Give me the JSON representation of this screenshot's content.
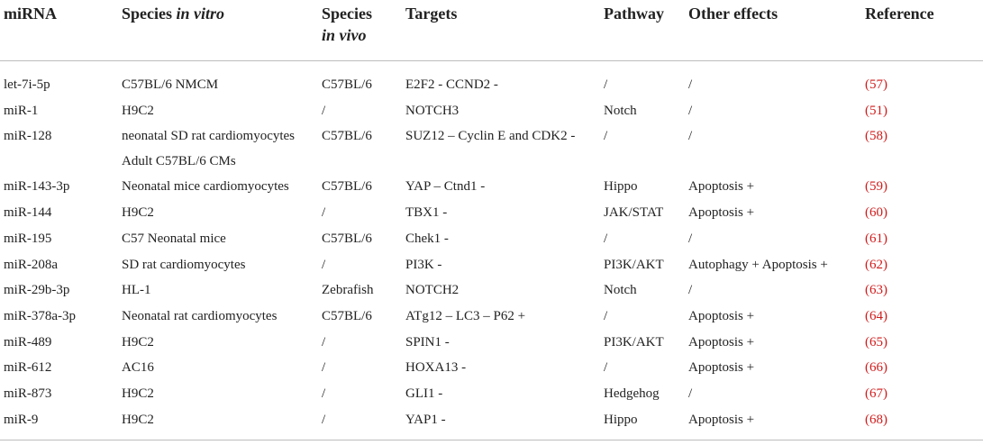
{
  "columns": {
    "mirna": "miRNA",
    "species_in_vitro": "Species",
    "species_in_vitro_em": "in vitro",
    "species_in_vivo": "Species",
    "species_in_vivo_em": "in vivo",
    "targets": "Targets",
    "pathway": "Pathway",
    "other_effects": "Other effects",
    "reference": "Reference"
  },
  "rows": [
    {
      "mirna": "let-7i-5p",
      "vitro": "C57BL/6 NMCM",
      "vivo": "C57BL/6",
      "targets": "E2F2 - CCND2 -",
      "pathway": "/",
      "effects": "/",
      "ref": "(57)"
    },
    {
      "mirna": "miR-1",
      "vitro": "H9C2",
      "vivo": "/",
      "targets": "NOTCH3",
      "pathway": "Notch",
      "effects": "/",
      "ref": "(51)"
    },
    {
      "mirna": "miR-128",
      "vitro": "neonatal SD rat cardiomyocytes",
      "vitro2": "Adult C57BL/6 CMs",
      "vivo": "C57BL/6",
      "targets": "SUZ12 – Cyclin E and CDK2 -",
      "pathway": "/",
      "effects": "/",
      "ref": "(58)"
    },
    {
      "mirna": "miR-143-3p",
      "vitro": "Neonatal mice cardiomyocytes",
      "vivo": "C57BL/6",
      "targets": "YAP – Ctnd1 -",
      "pathway": "Hippo",
      "effects": "Apoptosis +",
      "ref": "(59)"
    },
    {
      "mirna": "miR-144",
      "vitro": "H9C2",
      "vivo": "/",
      "targets": "TBX1 -",
      "pathway": "JAK/STAT",
      "effects": "Apoptosis +",
      "ref": "(60)"
    },
    {
      "mirna": "miR-195",
      "vitro": "C57 Neonatal mice",
      "vivo": "C57BL/6",
      "targets": "Chek1 -",
      "pathway": "/",
      "effects": "/",
      "ref": "(61)"
    },
    {
      "mirna": "miR-208a",
      "vitro": "SD rat cardiomyocytes",
      "vivo": "/",
      "targets": "PI3K -",
      "pathway": "PI3K/AKT",
      "effects": "Autophagy + Apoptosis +",
      "ref": "(62)"
    },
    {
      "mirna": "miR-29b-3p",
      "vitro": "HL-1",
      "vivo": "Zebrafish",
      "targets": "NOTCH2",
      "pathway": "Notch",
      "effects": "/",
      "ref": "(63)"
    },
    {
      "mirna": "miR-378a-3p",
      "vitro": "Neonatal rat cardiomyocytes",
      "vivo": "C57BL/6",
      "targets": "ATg12 – LC3 – P62 +",
      "pathway": "/",
      "effects": "Apoptosis +",
      "ref": "(64)"
    },
    {
      "mirna": "miR-489",
      "vitro": "H9C2",
      "vivo": "/",
      "targets": "SPIN1 -",
      "pathway": "PI3K/AKT",
      "effects": "Apoptosis +",
      "ref": "(65)"
    },
    {
      "mirna": "miR-612",
      "vitro": "AC16",
      "vivo": "/",
      "targets": "HOXA13 -",
      "pathway": "/",
      "effects": "Apoptosis +",
      "ref": "(66)"
    },
    {
      "mirna": "miR-873",
      "vitro": "H9C2",
      "vivo": "/",
      "targets": "GLI1 -",
      "pathway": "Hedgehog",
      "effects": "/",
      "ref": "(67)"
    },
    {
      "mirna": "miR-9",
      "vitro": "H9C2",
      "vivo": "/",
      "targets": "YAP1 -",
      "pathway": "Hippo",
      "effects": "Apoptosis +",
      "ref": "(68)"
    }
  ]
}
